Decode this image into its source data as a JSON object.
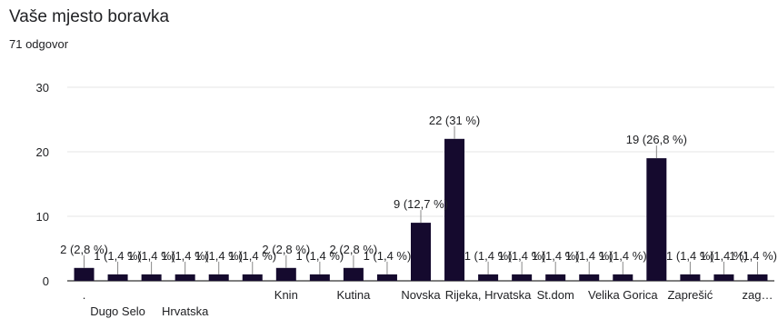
{
  "form": {
    "question": "Vaše mjesto boravka",
    "responses": "71 odgovor"
  },
  "chart_data": {
    "type": "bar",
    "ylim": [
      0,
      30
    ],
    "yticks": [
      0,
      10,
      20,
      30
    ],
    "grid": true,
    "colors": {
      "bar": "#150a2e",
      "grid": "#e6e6e6",
      "axis": "#333333",
      "whisker": "#888888"
    },
    "categories": [
      ".",
      "Dugo Selo",
      "",
      "Hrvatska",
      "",
      "",
      "Knin",
      "",
      "Kutina",
      "",
      "Novska",
      "",
      "Rijeka, Hrvatska",
      "",
      "St.dom",
      "",
      "Velika Gorica",
      "",
      "Zaprešić",
      "",
      "zag…"
    ],
    "values": [
      2,
      1,
      1,
      1,
      1,
      1,
      2,
      1,
      2,
      1,
      9,
      22,
      1,
      1,
      1,
      1,
      1,
      19,
      1,
      1,
      1
    ],
    "data_labels": [
      "2 (2,8 %)",
      "1 (1,4 %)",
      "1 (1,4 %)",
      "1 (1,4 %)",
      "1 (1,4 %)",
      "1 (1,4 %)",
      "2 (2,8 %)",
      "1 (1,4 %)",
      "2 (2,8 %)",
      "1 (1,4 %)",
      "9 (12,7 %)",
      "22 (31 %)",
      "1 (1,4 %)",
      "1 (1,4 %)",
      "1 (1,4 %)",
      "1 (1,4 %)",
      "1 (1,4 %)",
      "19 (26,8 %)",
      "1 (1,4 %)",
      "1 (1,4 %)",
      "1 (1,4 %)"
    ]
  }
}
